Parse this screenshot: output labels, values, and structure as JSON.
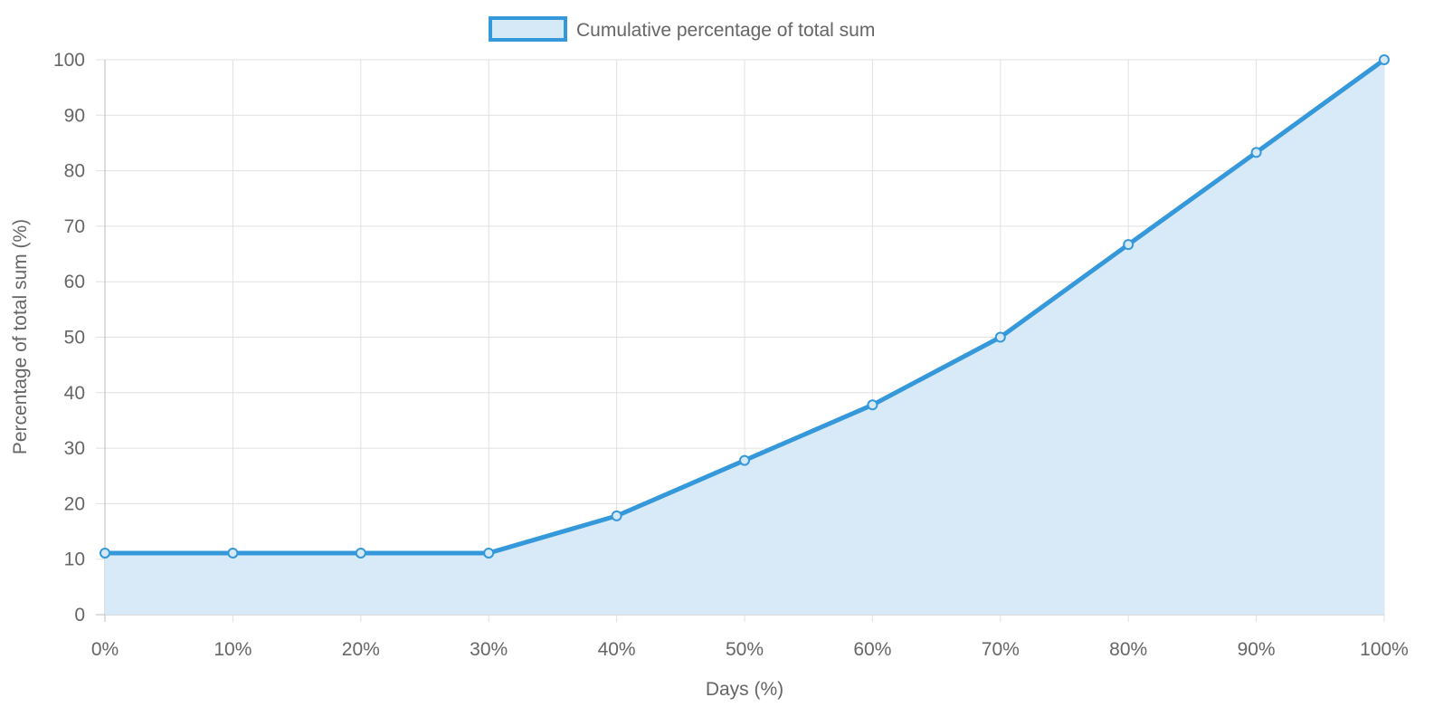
{
  "chart_data": {
    "type": "line",
    "fill": true,
    "xlabel": "Days (%)",
    "ylabel": "Percentage of total sum (%)",
    "ylim": [
      0,
      100
    ],
    "yticks": [
      "0",
      "10",
      "20",
      "30",
      "40",
      "50",
      "60",
      "70",
      "80",
      "90",
      "100"
    ],
    "categories": [
      "0%",
      "10%",
      "20%",
      "30%",
      "40%",
      "50%",
      "60%",
      "70%",
      "80%",
      "90%",
      "100%"
    ],
    "grid": true,
    "legend_position": "top",
    "series": [
      {
        "name": "Cumulative percentage of total sum",
        "values": [
          11.1,
          11.1,
          11.1,
          11.1,
          17.8,
          27.8,
          37.8,
          50,
          66.7,
          83.3,
          100
        ],
        "line_color": "#3498db",
        "fill_color": "#d6e9f7"
      }
    ]
  }
}
